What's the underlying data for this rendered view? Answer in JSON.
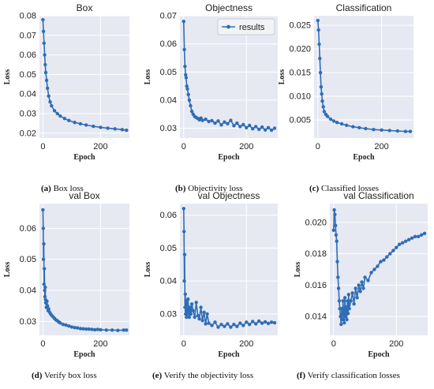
{
  "chart_data": [
    {
      "type": "line",
      "title": "Box",
      "xlabel": "Epoch",
      "ylabel": "Loss",
      "xlim": [
        -12,
        300
      ],
      "ylim": [
        0.0175,
        0.08
      ],
      "xticks": [
        0,
        200
      ],
      "yticks": [
        0.02,
        0.03,
        0.04,
        0.05,
        0.06,
        0.07,
        0.08
      ],
      "ytick_labels": [
        "0.02",
        "0.03",
        "0.04",
        "0.05",
        "0.06",
        "0.07",
        "0.08"
      ],
      "grid": true,
      "series": [
        {
          "x": [
            0,
            2,
            4,
            6,
            8,
            10,
            13,
            16,
            20,
            25,
            30,
            40,
            50,
            60,
            75,
            90,
            110,
            130,
            150,
            175,
            200,
            225,
            250,
            275,
            290
          ],
          "y": [
            0.078,
            0.072,
            0.066,
            0.06,
            0.055,
            0.051,
            0.047,
            0.043,
            0.039,
            0.036,
            0.034,
            0.0315,
            0.03,
            0.0288,
            0.0275,
            0.0265,
            0.0255,
            0.0248,
            0.0242,
            0.0235,
            0.023,
            0.0226,
            0.0222,
            0.0218,
            0.0215
          ]
        }
      ]
    },
    {
      "type": "line",
      "title": "Objectness",
      "xlabel": "Epoch",
      "ylabel": "Loss",
      "xlim": [
        -12,
        300
      ],
      "ylim": [
        0.0265,
        0.07
      ],
      "xticks": [
        0,
        200
      ],
      "yticks": [
        0.03,
        0.04,
        0.05,
        0.06,
        0.07
      ],
      "ytick_labels": [
        "0.03",
        "0.04",
        "0.05",
        "0.06",
        "0.07"
      ],
      "grid": true,
      "legend": "top-right",
      "series": [
        {
          "name": "results",
          "x": [
            0,
            2,
            4,
            6,
            8,
            10,
            12,
            15,
            18,
            22,
            26,
            30,
            35,
            40,
            45,
            50,
            55,
            60,
            70,
            80,
            90,
            100,
            110,
            120,
            130,
            140,
            150,
            160,
            170,
            180,
            190,
            200,
            210,
            220,
            230,
            240,
            250,
            260,
            270,
            280,
            290
          ],
          "y": [
            0.068,
            0.058,
            0.052,
            0.049,
            0.048,
            0.045,
            0.044,
            0.042,
            0.04,
            0.038,
            0.036,
            0.035,
            0.0342,
            0.0338,
            0.0335,
            0.033,
            0.0336,
            0.0328,
            0.0332,
            0.0324,
            0.0327,
            0.0318,
            0.0326,
            0.0312,
            0.0322,
            0.0316,
            0.0328,
            0.0309,
            0.0318,
            0.0306,
            0.0313,
            0.0302,
            0.031,
            0.0298,
            0.0306,
            0.0296,
            0.0304,
            0.0294,
            0.0302,
            0.0293,
            0.03
          ]
        }
      ]
    },
    {
      "type": "line",
      "title": "Classification",
      "xlabel": "Epoch",
      "ylabel": "Loss",
      "xlim": [
        -12,
        300
      ],
      "ylim": [
        0.0012,
        0.027
      ],
      "xticks": [
        0,
        200
      ],
      "yticks": [
        0.005,
        0.01,
        0.015,
        0.02,
        0.025
      ],
      "ytick_labels": [
        "0.005",
        "0.010",
        "0.015",
        "0.020",
        "0.025"
      ],
      "grid": true,
      "series": [
        {
          "x": [
            0,
            2,
            4,
            6,
            8,
            10,
            12,
            14,
            17,
            20,
            25,
            30,
            40,
            50,
            60,
            75,
            90,
            110,
            130,
            150,
            175,
            200,
            225,
            250,
            275,
            290
          ],
          "y": [
            0.026,
            0.024,
            0.021,
            0.018,
            0.015,
            0.012,
            0.0105,
            0.009,
            0.0078,
            0.0068,
            0.0062,
            0.0058,
            0.0052,
            0.0048,
            0.0045,
            0.0042,
            0.0039,
            0.0036,
            0.0034,
            0.0032,
            0.003,
            0.0029,
            0.0028,
            0.0027,
            0.0026,
            0.0026
          ]
        }
      ]
    },
    {
      "type": "line",
      "title": "val Box",
      "xlabel": "Epoch",
      "ylabel": "Loss",
      "xlim": [
        -12,
        300
      ],
      "ylim": [
        0.0255,
        0.068
      ],
      "xticks": [
        0,
        200
      ],
      "yticks": [
        0.03,
        0.04,
        0.05,
        0.06
      ],
      "ytick_labels": [
        "0.03",
        "0.04",
        "0.05",
        "0.06"
      ],
      "grid": true,
      "series": [
        {
          "x": [
            0,
            1,
            2,
            3,
            4,
            5,
            6,
            7,
            8,
            9,
            10,
            12,
            14,
            16,
            18,
            20,
            23,
            26,
            30,
            35,
            40,
            45,
            50,
            55,
            60,
            70,
            80,
            90,
            100,
            110,
            120,
            130,
            140,
            150,
            160,
            170,
            180,
            190,
            200,
            220,
            240,
            260,
            280,
            290
          ],
          "y": [
            0.066,
            0.06,
            0.05,
            0.055,
            0.042,
            0.047,
            0.04,
            0.038,
            0.041,
            0.037,
            0.036,
            0.0345,
            0.0365,
            0.035,
            0.0335,
            0.034,
            0.033,
            0.0325,
            0.032,
            0.0315,
            0.031,
            0.0305,
            0.0302,
            0.0298,
            0.0295,
            0.029,
            0.0288,
            0.0285,
            0.0282,
            0.028,
            0.0279,
            0.0277,
            0.0276,
            0.0275,
            0.0275,
            0.0274,
            0.0273,
            0.0274,
            0.0273,
            0.0272,
            0.0272,
            0.0271,
            0.0272,
            0.0272
          ]
        }
      ]
    },
    {
      "type": "line",
      "title": "val Objectness",
      "xlabel": "Epoch",
      "ylabel": "Loss",
      "xlim": [
        -12,
        300
      ],
      "ylim": [
        0.0235,
        0.0635
      ],
      "xticks": [
        0,
        200
      ],
      "yticks": [
        0.03,
        0.04,
        0.05,
        0.06
      ],
      "ytick_labels": [
        "0.03",
        "0.04",
        "0.05",
        "0.06"
      ],
      "grid": true,
      "series": [
        {
          "x": [
            0,
            1,
            2,
            3,
            4,
            5,
            6,
            7,
            8,
            9,
            10,
            12,
            14,
            16,
            18,
            20,
            23,
            26,
            30,
            35,
            40,
            45,
            50,
            55,
            60,
            65,
            70,
            75,
            80,
            90,
            100,
            110,
            120,
            130,
            140,
            150,
            160,
            170,
            180,
            190,
            200,
            210,
            220,
            230,
            240,
            250,
            260,
            270,
            280,
            290
          ],
          "y": [
            0.062,
            0.055,
            0.04,
            0.048,
            0.032,
            0.036,
            0.03,
            0.034,
            0.031,
            0.029,
            0.033,
            0.03,
            0.0345,
            0.031,
            0.029,
            0.032,
            0.03,
            0.033,
            0.031,
            0.029,
            0.0335,
            0.0295,
            0.0285,
            0.032,
            0.028,
            0.0305,
            0.027,
            0.03,
            0.0272,
            0.0265,
            0.0275,
            0.026,
            0.0268,
            0.0262,
            0.027,
            0.026,
            0.0268,
            0.0262,
            0.0272,
            0.0265,
            0.0275,
            0.0268,
            0.0277,
            0.027,
            0.0278,
            0.0272,
            0.0276,
            0.0271,
            0.0275,
            0.0273
          ]
        }
      ]
    },
    {
      "type": "line",
      "title": "val Classification",
      "xlabel": "Epoch",
      "ylabel": "Loss",
      "xlim": [
        -12,
        300
      ],
      "ylim": [
        0.0128,
        0.0212
      ],
      "xticks": [
        0,
        200
      ],
      "yticks": [
        0.014,
        0.016,
        0.018,
        0.02
      ],
      "ytick_labels": [
        "0.014",
        "0.016",
        "0.018",
        "0.020"
      ],
      "grid": true,
      "series": [
        {
          "x": [
            0,
            2,
            4,
            6,
            8,
            10,
            12,
            14,
            16,
            18,
            20,
            22,
            24,
            26,
            28,
            30,
            32,
            34,
            36,
            38,
            40,
            42,
            44,
            46,
            48,
            50,
            55,
            60,
            65,
            70,
            75,
            80,
            85,
            90,
            95,
            100,
            110,
            120,
            130,
            140,
            150,
            160,
            170,
            180,
            190,
            200,
            210,
            220,
            230,
            240,
            250,
            260,
            270,
            280,
            290
          ],
          "y": [
            0.0195,
            0.0208,
            0.0205,
            0.0198,
            0.0192,
            0.0188,
            0.0175,
            0.0165,
            0.0158,
            0.015,
            0.0145,
            0.014,
            0.0135,
            0.0145,
            0.0138,
            0.015,
            0.0142,
            0.0136,
            0.0152,
            0.014,
            0.0146,
            0.0138,
            0.015,
            0.0142,
            0.0154,
            0.0145,
            0.015,
            0.0155,
            0.0148,
            0.0158,
            0.0152,
            0.016,
            0.0156,
            0.0162,
            0.0158,
            0.0165,
            0.0163,
            0.0168,
            0.017,
            0.0172,
            0.0175,
            0.0176,
            0.0178,
            0.018,
            0.0182,
            0.0184,
            0.0186,
            0.0187,
            0.0188,
            0.0189,
            0.019,
            0.0191,
            0.0191,
            0.0192,
            0.0193
          ]
        }
      ]
    }
  ],
  "captions": [
    {
      "label": "(a)",
      "text": "Box loss"
    },
    {
      "label": "(b)",
      "text": "Objectivity loss"
    },
    {
      "label": "(c)",
      "text": "Classified losses"
    },
    {
      "label": "(d)",
      "text": "Verify box loss"
    },
    {
      "label": "(e)",
      "text": "Verify the objectivity loss"
    },
    {
      "label": "(f)",
      "text": "Verify classification losses"
    }
  ],
  "colors": {
    "line": "#2f6db5",
    "plot_bg": "#e6e9f2",
    "grid": "#ffffff"
  }
}
